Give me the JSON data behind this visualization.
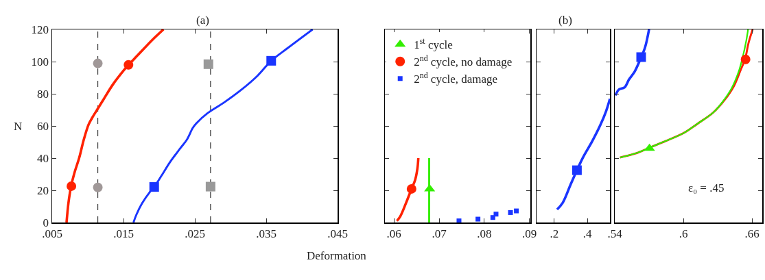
{
  "chart_data": [
    {
      "type": "line",
      "title": "(a)",
      "xlabel": "Deformation",
      "ylabel": "N",
      "xlim": [
        0.005,
        0.045
      ],
      "ylim": [
        0,
        120
      ],
      "xticks": [
        {
          "value": 0.005,
          "label": ".005"
        },
        {
          "value": 0.015,
          "label": ".015"
        },
        {
          "value": 0.025,
          "label": ".025"
        },
        {
          "value": 0.035,
          "label": ".035"
        },
        {
          "value": 0.045,
          "label": ".045"
        }
      ],
      "yticks": [
        0,
        20,
        40,
        60,
        80,
        100,
        120
      ],
      "grid": false,
      "legend": false,
      "ref_lines": [
        {
          "axis": "x",
          "value": 0.0114,
          "color": "#333333",
          "line_style": "dashed"
        },
        {
          "axis": "x",
          "value": 0.0272,
          "color": "#333333",
          "line_style": "dashed"
        }
      ],
      "series": [
        {
          "type": "line",
          "color": "#ff2200",
          "marker": "none",
          "x": [
            0.00702,
            0.00728,
            0.00766,
            0.00814,
            0.0088,
            0.00944,
            0.0101,
            0.0106,
            0.0115,
            0.0122,
            0.0135,
            0.0151,
            0.0157,
            0.017,
            0.019,
            0.0206
          ],
          "values": [
            0,
            11.9,
            22.6,
            31.1,
            40.3,
            51.6,
            60.8,
            65,
            71.5,
            76.5,
            85.7,
            94.9,
            98,
            104,
            113.3,
            120
          ]
        },
        {
          "type": "line",
          "color": "#1a35ff",
          "marker": "none",
          "x": [
            0.0164,
            0.0168,
            0.0176,
            0.0187,
            0.0193,
            0.0203,
            0.0215,
            0.0229,
            0.0239,
            0.0247,
            0.0252,
            0.0268,
            0.029,
            0.0316,
            0.0338,
            0.0357,
            0.038,
            0.0415
          ],
          "values": [
            0,
            4.8,
            11.9,
            19,
            22.1,
            28.9,
            37.4,
            45.8,
            51.6,
            58.7,
            61.6,
            68,
            74.3,
            82.8,
            91.3,
            100.5,
            108.4,
            120
          ]
        },
        {
          "type": "scatter",
          "color": "#ff2200",
          "marker": "circle",
          "x": [
            0.0077,
            0.0157
          ],
          "values": [
            22.6,
            98
          ]
        },
        {
          "type": "scatter",
          "color": "#1a35ff",
          "marker": "square",
          "x": [
            0.0193,
            0.0357
          ],
          "values": [
            22.1,
            100.5
          ]
        },
        {
          "type": "scatter",
          "color": "#a09898",
          "marker": "circle",
          "x": [
            0.0114,
            0.0114
          ],
          "values": [
            21.8,
            98.9
          ]
        },
        {
          "type": "scatter",
          "color": "#999999",
          "marker": "square",
          "x": [
            0.0272,
            0.0269
          ],
          "values": [
            22.3,
            98.4
          ]
        }
      ]
    },
    {
      "type": "line",
      "xlim": [
        0.058,
        0.0902
      ],
      "ylim": [
        0,
        120
      ],
      "xticks": [
        {
          "value": 0.06,
          "label": ".06"
        },
        {
          "value": 0.07,
          "label": ".07"
        },
        {
          "value": 0.08,
          "label": ".08"
        },
        {
          "value": 0.09,
          "label": ".09"
        }
      ],
      "yticks": [
        {
          "value": 0,
          "label": null
        },
        {
          "value": 20,
          "label": null
        },
        {
          "value": 40,
          "label": null
        },
        {
          "value": 60,
          "label": null
        },
        {
          "value": 80,
          "label": null
        },
        {
          "value": 100,
          "label": null
        },
        {
          "value": 120,
          "label": null
        }
      ],
      "tick_labels": "x",
      "grid": false,
      "legend": "top left",
      "series": [
        {
          "type": "line",
          "color": "#ff2200",
          "marker": "none",
          "x": [
            0.06066,
            0.0614,
            0.0627,
            0.0639,
            0.0647,
            0.0652,
            0.0654
          ],
          "values": [
            1,
            3.8,
            12.3,
            20.9,
            26.5,
            33.6,
            40
          ]
        },
        {
          "type": "line",
          "color": "#33ee00",
          "marker": "none",
          "x": [
            0.0678,
            0.0678
          ],
          "values": [
            0,
            40
          ]
        },
        {
          "type": "scatter",
          "name": "1$^{st}$ cycle",
          "color": "#33ee00",
          "marker": "triangle",
          "x": [
            0.0679
          ],
          "values": [
            20.9
          ]
        },
        {
          "type": "scatter",
          "name": "2$^{nd}$ cycle, no damage",
          "color": "#ff2200",
          "marker": "circle",
          "x": [
            0.0639
          ],
          "values": [
            20.9
          ]
        },
        {
          "type": "scatter",
          "name": "2$^{nd}$ cycle, damage",
          "color": "#1a35ff",
          "marker": "square",
          "x": [
            0.0744,
            0.0786,
            0.0819,
            0.0826,
            0.0858,
            0.0871
          ],
          "values": [
            1,
            2.1,
            3.1,
            5.2,
            6.2,
            7.2
          ]
        }
      ]
    },
    {
      "type": "line",
      "title": "(b)",
      "xlim": [
        0.092,
        0.537
      ],
      "ylim": [
        0,
        120
      ],
      "xticks": [
        {
          "value": 0.2,
          "label": ".2"
        },
        {
          "value": 0.4,
          "label": ".4"
        }
      ],
      "yticks": [
        {
          "value": 0,
          "label": null
        },
        {
          "value": 20,
          "label": null
        },
        {
          "value": 40,
          "label": null
        },
        {
          "value": 60,
          "label": null
        },
        {
          "value": 80,
          "label": null
        },
        {
          "value": 100,
          "label": null
        },
        {
          "value": 120,
          "label": null
        }
      ],
      "tick_labels": "x",
      "grid": false,
      "legend": false,
      "series": [
        {
          "type": "line",
          "color": "#1a35ff",
          "marker": "none",
          "x": [
            0.2166,
            0.251,
            0.299,
            0.337,
            0.375,
            0.43,
            0.479,
            0.513,
            0.537
          ],
          "values": [
            8.1,
            12.3,
            23.7,
            32.5,
            40.7,
            50.6,
            60.6,
            69,
            76.9
          ]
        },
        {
          "type": "scatter",
          "color": "#1a35ff",
          "marker": "square",
          "x": [
            0.337
          ],
          "values": [
            32.5
          ]
        }
      ]
    },
    {
      "type": "line",
      "annotations": [
        "ε₀ = .45"
      ],
      "xlim": [
        0.54,
        0.669
      ],
      "ylim": [
        0,
        120
      ],
      "xticks": [
        {
          "value": 0.54,
          "label": ".54"
        },
        {
          "value": 0.6,
          "label": ".6"
        },
        {
          "value": 0.66,
          "label": ".66"
        }
      ],
      "yticks": [
        {
          "value": 0,
          "label": null
        },
        {
          "value": 20,
          "label": null
        },
        {
          "value": 40,
          "label": null
        },
        {
          "value": 60,
          "label": null
        },
        {
          "value": 80,
          "label": null
        },
        {
          "value": 100,
          "label": null
        },
        {
          "value": 120,
          "label": null
        }
      ],
      "tick_labels": "x",
      "grid": false,
      "legend": false,
      "series": [
        {
          "type": "line",
          "color": "#1a35ff",
          "marker": "none",
          "x": [
            0.5406,
            0.5436,
            0.5486,
            0.5525,
            0.5575,
            0.5625,
            0.5665,
            0.57
          ],
          "values": [
            79,
            82.6,
            84,
            88.9,
            93.9,
            101.7,
            108.8,
            120
          ]
        },
        {
          "type": "line",
          "color": "#ff2200",
          "marker": "none",
          "x": [
            0.5446,
            0.5505,
            0.5605,
            0.5724,
            0.5844,
            0.6003,
            0.6122,
            0.6262,
            0.6361,
            0.6441,
            0.65,
            0.654,
            0.657,
            0.6606
          ],
          "values": [
            40.4,
            41.4,
            43.5,
            47.1,
            50.6,
            55.6,
            61.3,
            68.4,
            76.2,
            84.7,
            94.6,
            101.7,
            111.6,
            120
          ]
        },
        {
          "type": "line",
          "color": "#33ee00",
          "marker": "none",
          "x": [
            0.5446,
            0.5505,
            0.5605,
            0.5724,
            0.5844,
            0.6003,
            0.6122,
            0.6262,
            0.6341,
            0.6421,
            0.6481,
            0.652,
            0.655,
            0.6566
          ],
          "values": [
            40.4,
            41.4,
            43.5,
            47.1,
            50.6,
            55.6,
            61.3,
            68.4,
            74.8,
            83.3,
            93.2,
            103.1,
            113,
            120
          ]
        },
        {
          "type": "scatter",
          "color": "#1a35ff",
          "marker": "square",
          "x": [
            0.5631
          ],
          "values": [
            102.8
          ]
        },
        {
          "type": "scatter",
          "color": "#ff2200",
          "marker": "circle",
          "x": [
            0.6544
          ],
          "values": [
            101.4
          ]
        },
        {
          "type": "scatter",
          "color": "#33ee00",
          "marker": "triangle",
          "x": [
            0.5704
          ],
          "values": [
            46.1
          ]
        }
      ]
    }
  ]
}
